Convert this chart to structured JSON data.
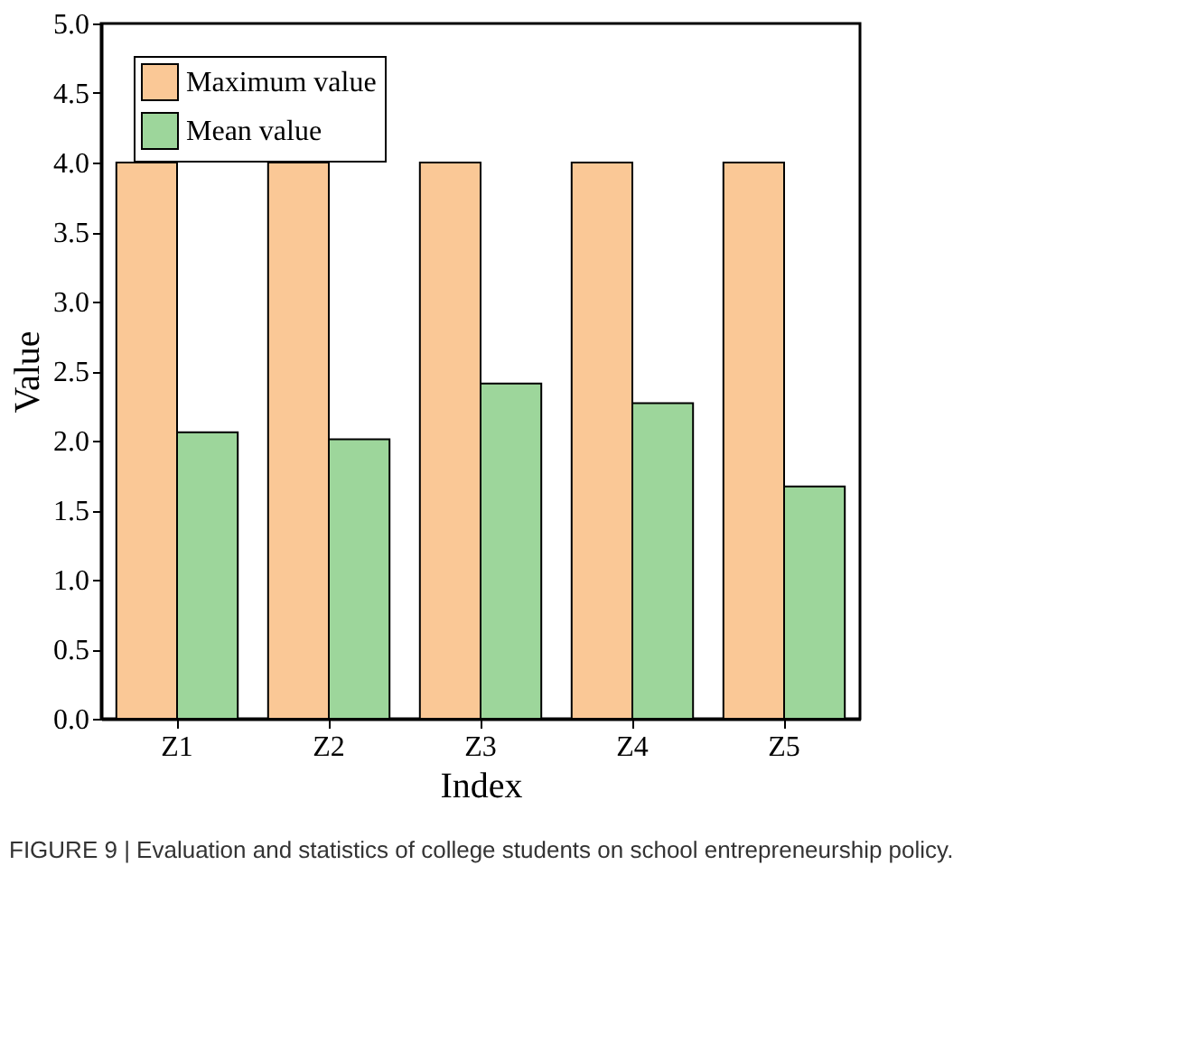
{
  "chart_data": {
    "type": "bar",
    "categories": [
      "Z1",
      "Z2",
      "Z3",
      "Z4",
      "Z5"
    ],
    "series": [
      {
        "name": "Maximum value",
        "color": "#fac896",
        "values": [
          4.0,
          4.0,
          4.0,
          4.0,
          4.0
        ]
      },
      {
        "name": "Mean value",
        "color": "#9dd69b",
        "values": [
          2.06,
          2.01,
          2.41,
          2.27,
          1.67
        ]
      }
    ],
    "xlabel": "Index",
    "ylabel": "Value",
    "ylim": [
      0,
      5
    ],
    "yticks": [
      {
        "value": 0,
        "label": "0.0"
      },
      0.5,
      {
        "value": 1,
        "label": "1.0"
      },
      1.5,
      {
        "value": 2,
        "label": "2.0"
      },
      2.5,
      {
        "value": 3,
        "label": "3.0"
      },
      3.5,
      {
        "value": 4,
        "label": "4.0"
      },
      4.5,
      {
        "value": 5,
        "label": "5.0"
      }
    ],
    "legend": "top left",
    "grid": false,
    "annotations": [
      "FIGURE 9 | Evaluation and statistics of college students on school entrepreneurship policy."
    ]
  }
}
